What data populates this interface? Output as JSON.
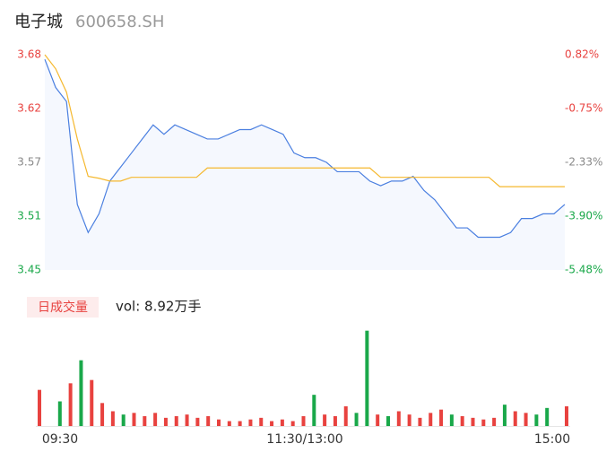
{
  "title": "电子城",
  "code": "600658.SH",
  "chart_data": [
    {
      "type": "line",
      "ylim": [
        3.45,
        3.68
      ],
      "yticks": [
        3.45,
        {
          "value": 3.5075,
          "label": "3.51"
        },
        {
          "value": 3.565,
          "label": "3.57"
        },
        {
          "value": 3.6225,
          "label": "3.62"
        },
        3.68
      ],
      "ytick_colors": [
        "#1aa84a",
        "#1aa84a",
        "#888888",
        "#e8423f",
        "#e8423f"
      ],
      "y2lim": [
        -5.48,
        0.82
      ],
      "y2ticks": [
        {
          "value": -5.48,
          "label": "-5.48%"
        },
        {
          "value": -3.905,
          "label": "-3.90%"
        },
        {
          "value": -2.33,
          "label": "-2.33%"
        },
        {
          "value": -0.755,
          "label": "-0.75%"
        },
        {
          "value": 0.82,
          "label": "0.82%"
        }
      ],
      "y2tick_colors": [
        "#1aa84a",
        "#1aa84a",
        "#888888",
        "#e8423f",
        "#e8423f"
      ],
      "area_color": "#f5f8fe",
      "series": [
        {
          "color": "#4a7fe0",
          "values": [
            3.675,
            3.645,
            3.63,
            3.52,
            3.49,
            3.51,
            3.545,
            3.56,
            3.575,
            3.59,
            3.605,
            3.595,
            3.605,
            3.6,
            3.595,
            3.59,
            3.59,
            3.595,
            3.6,
            3.6,
            3.605,
            3.6,
            3.595,
            3.575,
            3.57,
            3.57,
            3.565,
            3.555,
            3.555,
            3.555,
            3.545,
            3.54,
            3.545,
            3.545,
            3.55,
            3.535,
            3.525,
            3.51,
            3.495,
            3.495,
            3.485,
            3.485,
            3.485,
            3.49,
            3.505,
            3.505,
            3.51,
            3.51,
            3.52
          ]
        },
        {
          "color": "#f5b82e",
          "values": [
            3.68,
            3.665,
            3.64,
            3.59,
            3.55,
            3.548,
            3.545,
            3.545,
            3.549,
            3.549,
            3.549,
            3.549,
            3.549,
            3.549,
            3.549,
            3.559,
            3.559,
            3.559,
            3.559,
            3.559,
            3.559,
            3.559,
            3.559,
            3.559,
            3.559,
            3.559,
            3.559,
            3.559,
            3.559,
            3.559,
            3.559,
            3.549,
            3.549,
            3.549,
            3.549,
            3.549,
            3.549,
            3.549,
            3.549,
            3.549,
            3.549,
            3.549,
            3.539,
            3.539,
            3.539,
            3.539,
            3.539,
            3.539,
            3.539
          ]
        }
      ]
    },
    {
      "type": "bar",
      "title": "日成交量",
      "annotation": "vol: 8.92万手",
      "categories": [
        "09:30",
        null,
        null,
        null,
        null,
        null,
        null,
        null,
        null,
        null,
        null,
        null,
        null,
        null,
        null,
        null,
        null,
        null,
        null,
        null,
        null,
        null,
        null,
        null,
        "11:30/13:00",
        null,
        null,
        null,
        null,
        null,
        null,
        null,
        null,
        null,
        null,
        null,
        null,
        null,
        null,
        null,
        null,
        null,
        null,
        null,
        null,
        null,
        null,
        null,
        "15:00"
      ],
      "ylim": [
        0,
        6000
      ],
      "values": [
        2200,
        1500,
        2600,
        4000,
        2800,
        1400,
        900,
        700,
        800,
        600,
        800,
        500,
        600,
        700,
        500,
        600,
        400,
        300,
        300,
        400,
        500,
        300,
        400,
        300,
        600,
        1900,
        700,
        600,
        1200,
        800,
        5800,
        700,
        600,
        900,
        700,
        500,
        800,
        1000,
        700,
        600,
        500,
        400,
        500,
        1300,
        900,
        800,
        700,
        1100,
        1200
      ],
      "colors": [
        "#e8423f",
        "#1aa84a",
        "#e8423f",
        "#1aa84a",
        "#e8423f",
        "#e8423f",
        "#e8423f",
        "#1aa84a",
        "#e8423f",
        "#e8423f",
        "#e8423f",
        "#e8423f",
        "#e8423f",
        "#e8423f",
        "#e8423f",
        "#e8423f",
        "#e8423f",
        "#e8423f",
        "#e8423f",
        "#e8423f",
        "#e8423f",
        "#e8423f",
        "#e8423f",
        "#e8423f",
        "#e8423f",
        "#1aa84a",
        "#e8423f",
        "#e8423f",
        "#e8423f",
        "#1aa84a",
        "#1aa84a",
        "#e8423f",
        "#1aa84a",
        "#e8423f",
        "#e8423f",
        "#e8423f",
        "#e8423f",
        "#e8423f",
        "#1aa84a",
        "#e8423f",
        "#e8423f",
        "#e8423f",
        "#e8423f",
        "#1aa84a",
        "#e8423f",
        "#e8423f",
        "#1aa84a",
        "#1aa84a",
        "#e8423f"
      ]
    }
  ]
}
